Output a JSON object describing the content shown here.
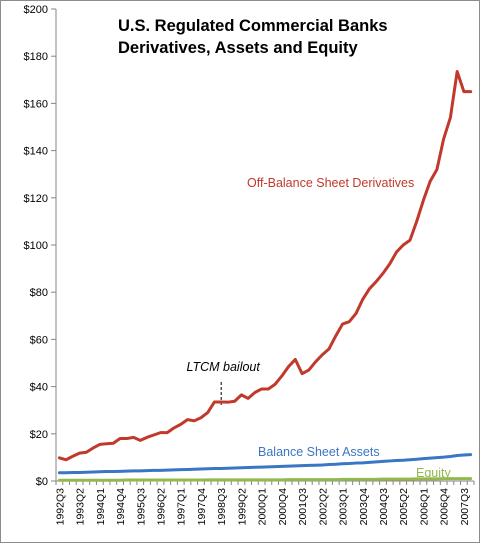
{
  "chart_data": {
    "type": "line",
    "title": [
      "U.S. Regulated Commercial Banks",
      "Derivatives, Assets and Equity"
    ],
    "xlabel": "",
    "ylabel": "",
    "ylim": [
      0,
      200
    ],
    "y_ticks": [
      0,
      20,
      40,
      60,
      80,
      100,
      120,
      140,
      160,
      180,
      200
    ],
    "y_tick_labels": [
      "$0",
      "$20",
      "$40",
      "$60",
      "$80",
      "$100",
      "$120",
      "$140",
      "$160",
      "$180",
      "$200"
    ],
    "x_tick_labels": [
      "1992Q3",
      "1993Q2",
      "1994Q1",
      "1994Q4",
      "1995Q3",
      "1996Q2",
      "1997Q1",
      "1997Q4",
      "1998Q3",
      "1999Q2",
      "2000Q1",
      "2000Q4",
      "2001Q3",
      "2002Q2",
      "2003Q1",
      "2003Q4",
      "2004Q3",
      "2005Q2",
      "2006Q1",
      "2006Q4",
      "2007Q3"
    ],
    "x_tick_every": 3,
    "x": [
      "1992Q3",
      "1992Q4",
      "1993Q1",
      "1993Q2",
      "1993Q3",
      "1993Q4",
      "1994Q1",
      "1994Q2",
      "1994Q3",
      "1994Q4",
      "1995Q1",
      "1995Q2",
      "1995Q3",
      "1995Q4",
      "1996Q1",
      "1996Q2",
      "1996Q3",
      "1996Q4",
      "1997Q1",
      "1997Q2",
      "1997Q3",
      "1997Q4",
      "1998Q1",
      "1998Q2",
      "1998Q3",
      "1998Q4",
      "1999Q1",
      "1999Q2",
      "1999Q3",
      "1999Q4",
      "2000Q1",
      "2000Q2",
      "2000Q3",
      "2000Q4",
      "2001Q1",
      "2001Q2",
      "2001Q3",
      "2001Q4",
      "2002Q1",
      "2002Q2",
      "2002Q3",
      "2002Q4",
      "2003Q1",
      "2003Q2",
      "2003Q3",
      "2003Q4",
      "2004Q1",
      "2004Q2",
      "2004Q3",
      "2004Q4",
      "2005Q1",
      "2005Q2",
      "2005Q3",
      "2005Q4",
      "2006Q1",
      "2006Q2",
      "2006Q3",
      "2006Q4",
      "2007Q1",
      "2007Q2",
      "2007Q3",
      "2007Q4"
    ],
    "series": [
      {
        "name": "Off-Balance Sheet Derivatives",
        "color": "#c0392b",
        "values": [
          9.8,
          9.0,
          10.5,
          11.8,
          12.2,
          14.0,
          15.5,
          15.8,
          16.0,
          18.0,
          18.0,
          18.5,
          17.2,
          18.5,
          19.5,
          20.5,
          20.5,
          22.5,
          24.0,
          26.0,
          25.5,
          26.8,
          29.0,
          33.5,
          33.5,
          33.4,
          33.8,
          36.5,
          35.0,
          37.5,
          39.0,
          39.0,
          41.0,
          44.5,
          48.5,
          51.5,
          45.5,
          47.0,
          50.5,
          53.5,
          56.0,
          61.5,
          66.5,
          67.5,
          71.0,
          77.0,
          81.5,
          84.5,
          88.0,
          92.0,
          97.0,
          100.0,
          102.0,
          110.0,
          119.0,
          127.0,
          132.0,
          145.0,
          154.0,
          173.5,
          165.0,
          165.0
        ]
      },
      {
        "name": "Balance Sheet Assets",
        "color": "#3a76c4",
        "values": [
          3.5,
          3.5,
          3.6,
          3.6,
          3.7,
          3.8,
          3.9,
          4.0,
          4.0,
          4.1,
          4.2,
          4.3,
          4.3,
          4.4,
          4.5,
          4.5,
          4.6,
          4.7,
          4.8,
          4.9,
          5.0,
          5.1,
          5.2,
          5.3,
          5.3,
          5.4,
          5.5,
          5.6,
          5.7,
          5.8,
          5.9,
          6.0,
          6.1,
          6.2,
          6.3,
          6.4,
          6.5,
          6.6,
          6.7,
          6.8,
          7.0,
          7.1,
          7.3,
          7.4,
          7.6,
          7.7,
          7.9,
          8.1,
          8.3,
          8.5,
          8.7,
          8.8,
          9.0,
          9.2,
          9.5,
          9.7,
          9.9,
          10.1,
          10.4,
          10.8,
          11.0,
          11.2
        ]
      },
      {
        "name": "Equity",
        "color": "#93b94d",
        "values": [
          0.3,
          0.3,
          0.3,
          0.3,
          0.3,
          0.3,
          0.3,
          0.3,
          0.3,
          0.3,
          0.4,
          0.4,
          0.4,
          0.4,
          0.4,
          0.4,
          0.4,
          0.4,
          0.4,
          0.4,
          0.4,
          0.4,
          0.5,
          0.5,
          0.5,
          0.5,
          0.5,
          0.5,
          0.5,
          0.5,
          0.5,
          0.5,
          0.5,
          0.5,
          0.6,
          0.6,
          0.6,
          0.6,
          0.6,
          0.6,
          0.6,
          0.6,
          0.7,
          0.7,
          0.7,
          0.7,
          0.7,
          0.7,
          0.8,
          0.8,
          0.8,
          0.8,
          0.8,
          0.9,
          0.9,
          0.9,
          0.9,
          1.0,
          1.0,
          1.0,
          1.0,
          1.0
        ]
      }
    ],
    "annotations": [
      {
        "text": "LTCM bailout",
        "x": "1998Q3",
        "style": "dashed-vertical"
      }
    ],
    "grid": false,
    "legend": "inline labels"
  }
}
